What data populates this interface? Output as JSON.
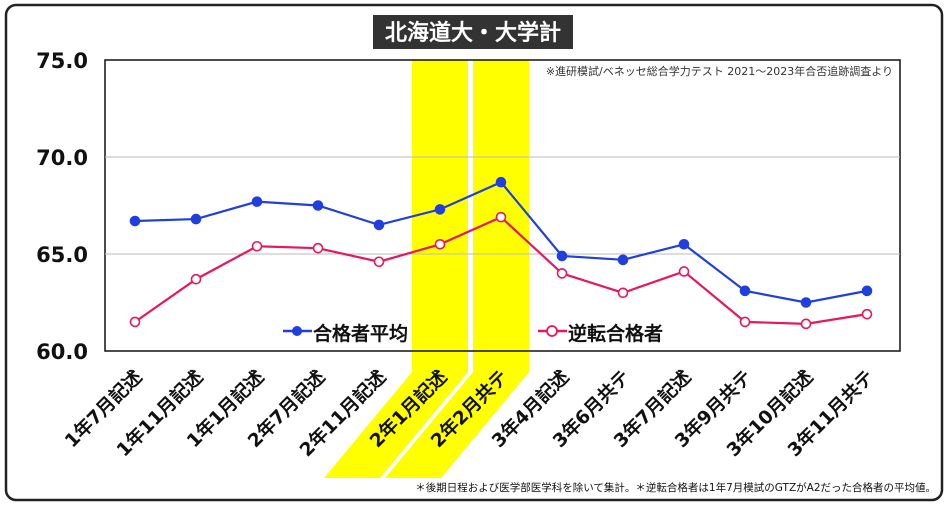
{
  "colors": {
    "series_blue": "#1f3fe0",
    "series_pink": "#e8175d",
    "highlight": "#ffff00",
    "title_bg": "#333333",
    "title_text": "#ffffff",
    "grid": "#bbbbbb"
  },
  "header": {
    "title": "北海道大・大学計",
    "source_note": "※進研模試/ベネッセ総合学力テスト 2021～2023年合否追跡調査より"
  },
  "footer": {
    "note": "＊後期日程および医学部医学科を除いて集計。＊逆転合格者は1年7月模試のGTZがA2だった合格者の平均値。"
  },
  "chart_data": {
    "type": "line",
    "categories": [
      "1年7月記述",
      "1年11月記述",
      "1年1月記述",
      "2年7月記述",
      "2年11月記述",
      "2年1月記述",
      "2年2月共テ",
      "3年4月記述",
      "3年6月共テ",
      "3年7月記述",
      "3年9月共テ",
      "3年10月記述",
      "3年11月共テ"
    ],
    "series": [
      {
        "name": "合格者平均",
        "color": "#1f3fe0",
        "marker": "filled",
        "values": [
          66.7,
          66.8,
          67.7,
          67.5,
          66.5,
          67.3,
          68.7,
          64.9,
          64.7,
          65.5,
          63.1,
          62.5,
          63.1
        ]
      },
      {
        "name": "逆転合格者",
        "color": "#e8175d",
        "marker": "hollow",
        "values": [
          61.5,
          63.7,
          65.4,
          65.3,
          64.6,
          65.5,
          66.9,
          64.0,
          63.0,
          64.1,
          61.5,
          61.4,
          61.9
        ]
      }
    ],
    "ylim": [
      60.0,
      75.0
    ],
    "yticks": [
      "75.0",
      "70.0",
      "65.0",
      "60.0"
    ],
    "highlighted_categories": [
      "2年1月記述",
      "2年2月共テ"
    ],
    "legend_placement": "inside-bottom"
  }
}
